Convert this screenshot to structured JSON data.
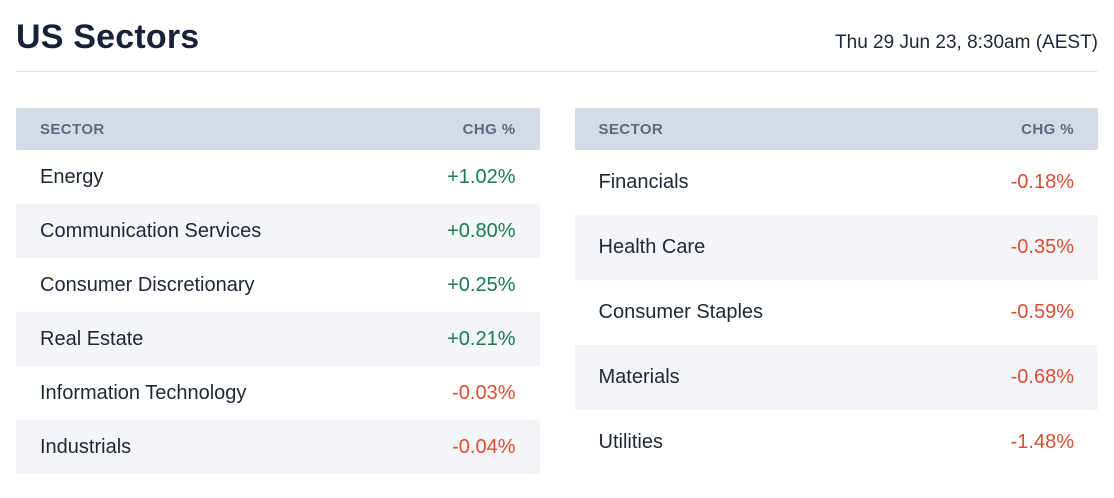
{
  "header": {
    "title": "US Sectors",
    "timestamp": "Thu 29 Jun 23, 8:30am (AEST)"
  },
  "columns": {
    "sector": "SECTOR",
    "change": "CHG %"
  },
  "colors": {
    "positive": "#1b7a4e",
    "negative": "#e04b31",
    "header_bg": "#d5dbe4",
    "alt_row_bg": "#f3f5f8",
    "title_text": "#172138"
  },
  "tables": [
    {
      "id": "left",
      "rows": [
        {
          "sector": "Energy",
          "change": "+1.02%",
          "direction": "up"
        },
        {
          "sector": "Communication Services",
          "change": "+0.80%",
          "direction": "up"
        },
        {
          "sector": "Consumer Discretionary",
          "change": "+0.25%",
          "direction": "up"
        },
        {
          "sector": "Real Estate",
          "change": "+0.21%",
          "direction": "up"
        },
        {
          "sector": "Information Technology",
          "change": "-0.03%",
          "direction": "down"
        },
        {
          "sector": "Industrials",
          "change": "-0.04%",
          "direction": "down"
        }
      ]
    },
    {
      "id": "right",
      "rows": [
        {
          "sector": "Financials",
          "change": "-0.18%",
          "direction": "down"
        },
        {
          "sector": "Health Care",
          "change": "-0.35%",
          "direction": "down"
        },
        {
          "sector": "Consumer Staples",
          "change": "-0.59%",
          "direction": "down"
        },
        {
          "sector": "Materials",
          "change": "-0.68%",
          "direction": "down"
        },
        {
          "sector": "Utilities",
          "change": "-1.48%",
          "direction": "down"
        }
      ]
    }
  ],
  "chart_data": {
    "type": "table",
    "title": "US Sectors",
    "timestamp": "Thu 29 Jun 23, 8:30am (AEST)",
    "columns": [
      "SECTOR",
      "CHG %"
    ],
    "tables": [
      {
        "position": "left",
        "rows": [
          [
            "Energy",
            1.02
          ],
          [
            "Communication Services",
            0.8
          ],
          [
            "Consumer Discretionary",
            0.25
          ],
          [
            "Real Estate",
            0.21
          ],
          [
            "Information Technology",
            -0.03
          ],
          [
            "Industrials",
            -0.04
          ]
        ]
      },
      {
        "position": "right",
        "rows": [
          [
            "Financials",
            -0.18
          ],
          [
            "Health Care",
            -0.35
          ],
          [
            "Consumer Staples",
            -0.59
          ],
          [
            "Materials",
            -0.68
          ],
          [
            "Utilities",
            -1.48
          ]
        ]
      }
    ],
    "value_unit": "percent_change",
    "positive_color": "#1b7a4e",
    "negative_color": "#e04b31"
  }
}
